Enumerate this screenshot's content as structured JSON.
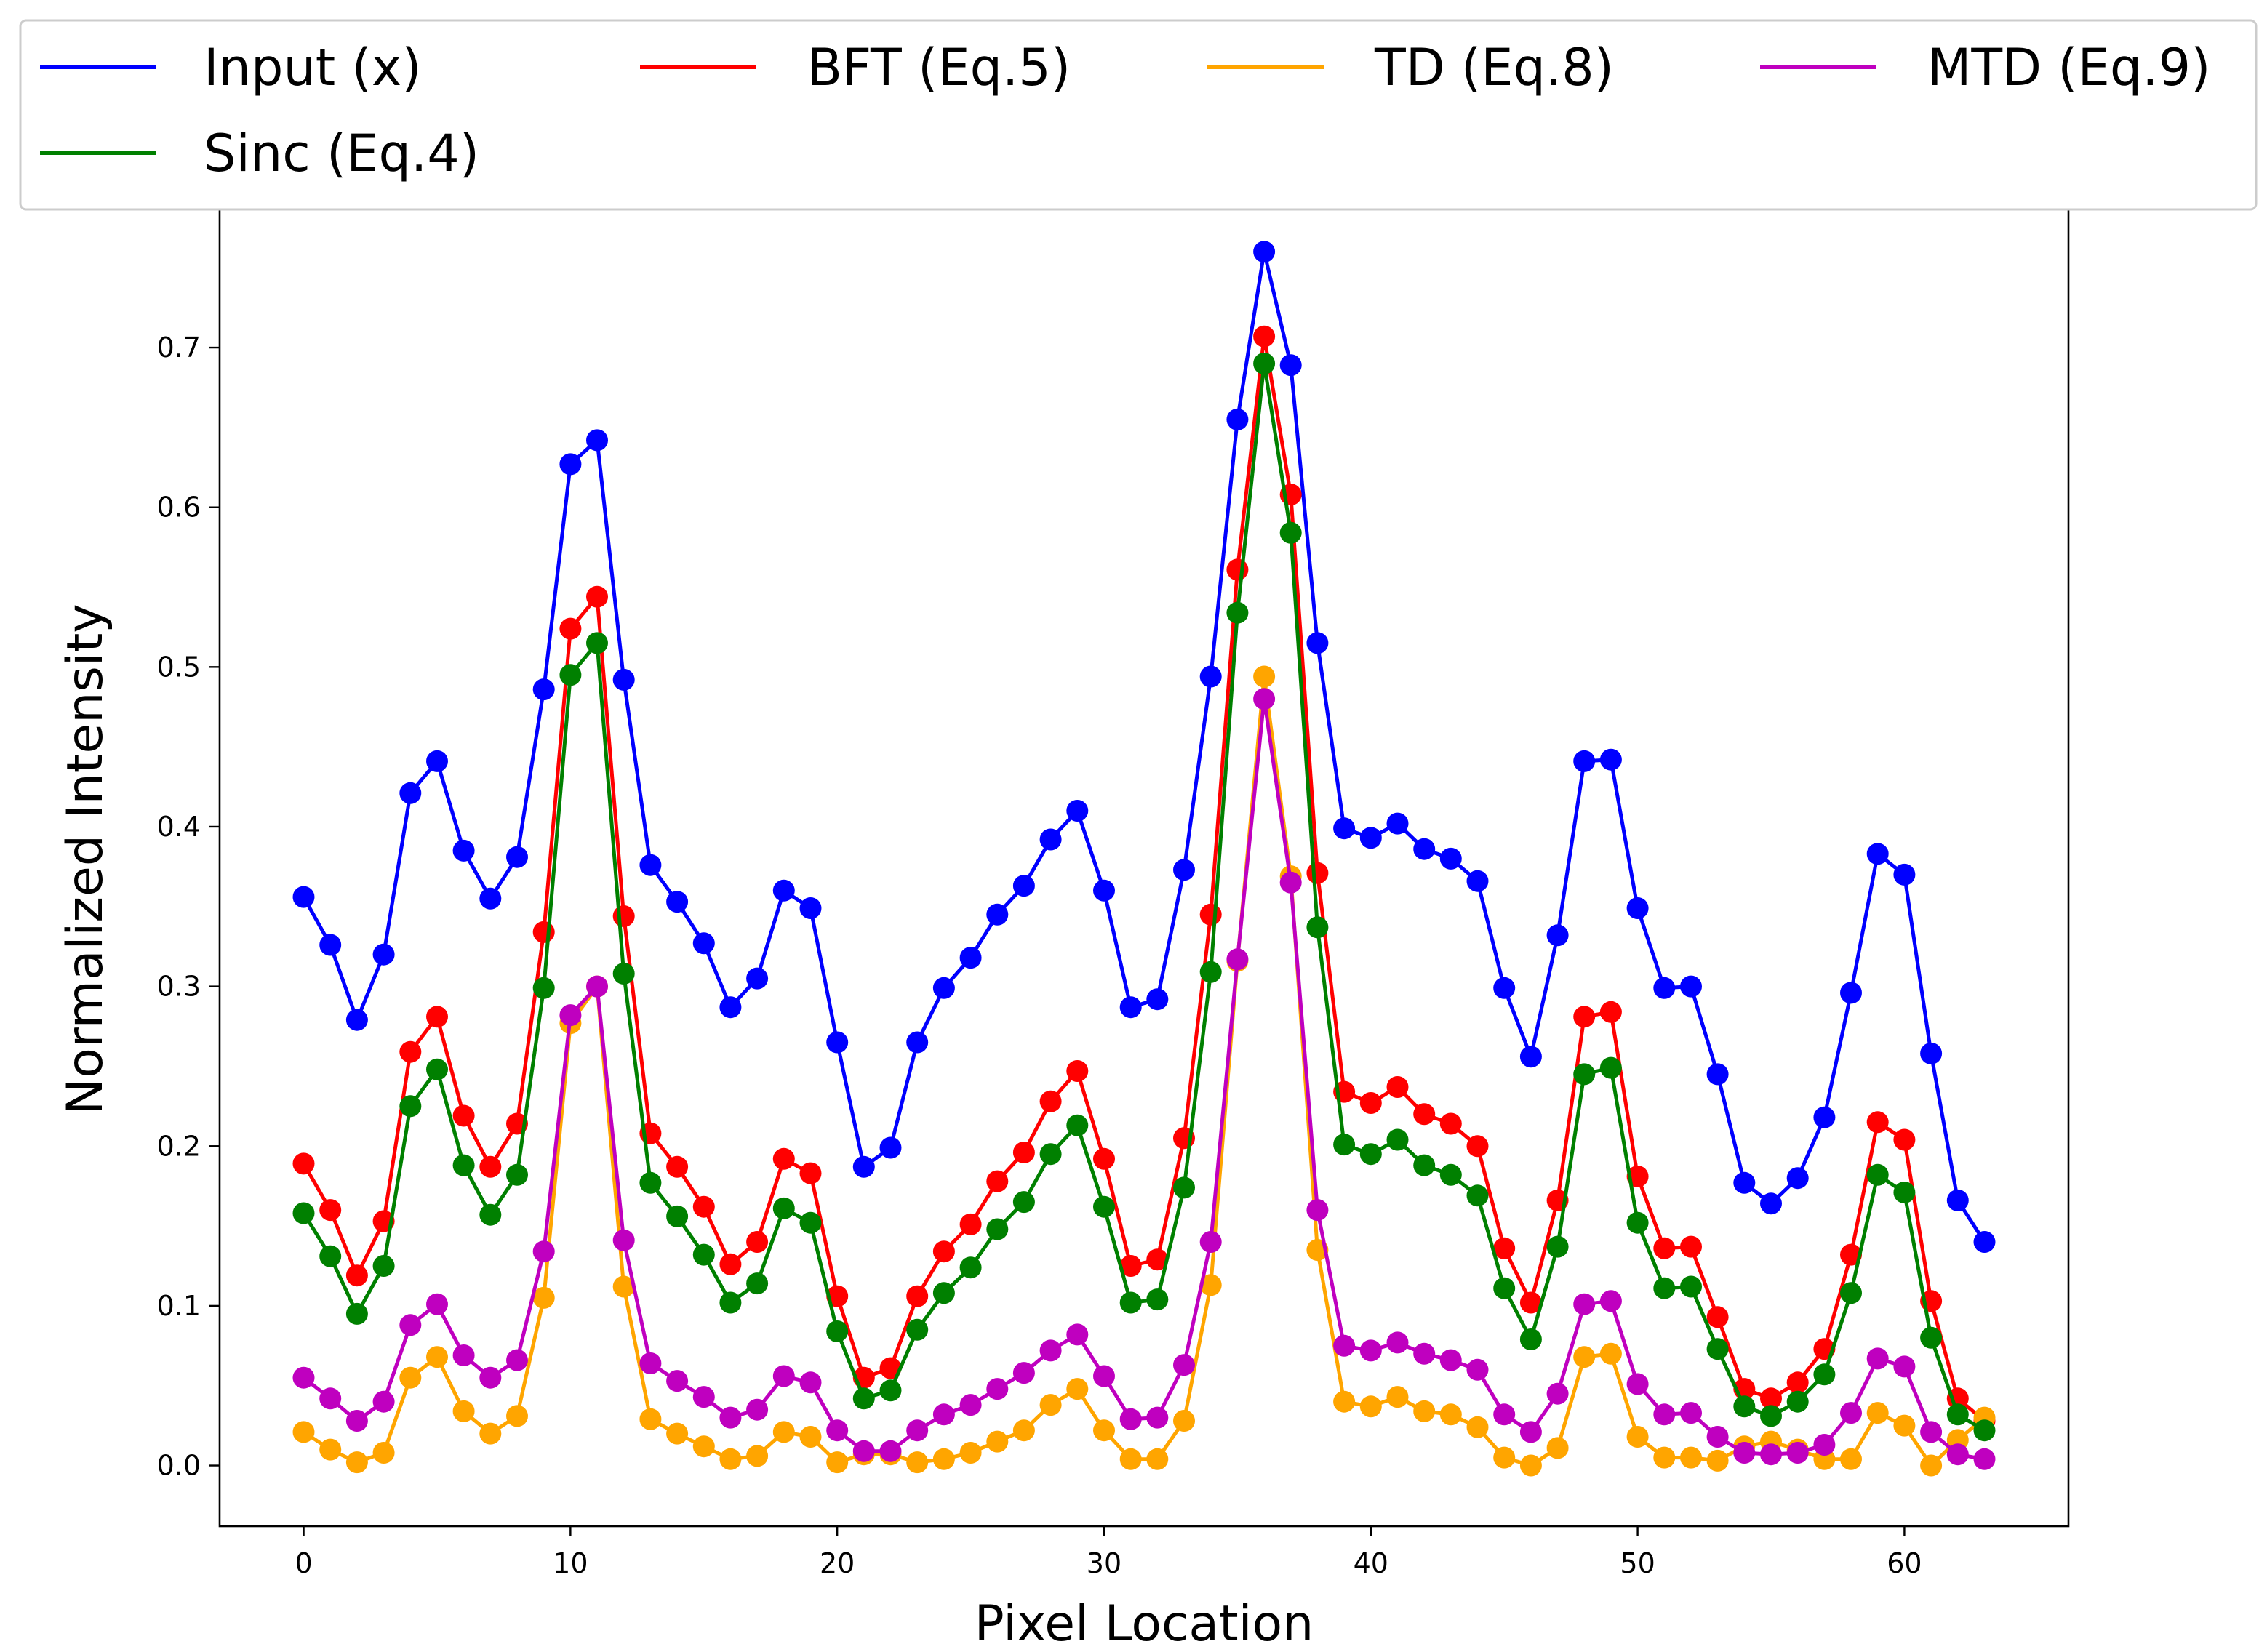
{
  "chart_data": {
    "type": "line",
    "xlabel": "Pixel Location",
    "ylabel": "Normalized Intensity",
    "xlim": [
      -3.15,
      66.15
    ],
    "ylim": [
      -0.038,
      0.797
    ],
    "xticks": [
      0,
      10,
      20,
      30,
      40,
      50,
      60
    ],
    "yticks": [
      0.0,
      0.1,
      0.2,
      0.3,
      0.4,
      0.5,
      0.6,
      0.7
    ],
    "ytick_labels": [
      "0.0",
      "0.1",
      "0.2",
      "0.3",
      "0.4",
      "0.5",
      "0.6",
      "0.7"
    ],
    "legend_position": "top (above plot, 4 columns)",
    "x": [
      0,
      1,
      2,
      3,
      4,
      5,
      6,
      7,
      8,
      9,
      10,
      11,
      12,
      13,
      14,
      15,
      16,
      17,
      18,
      19,
      20,
      21,
      22,
      23,
      24,
      25,
      26,
      27,
      28,
      29,
      30,
      31,
      32,
      33,
      34,
      35,
      36,
      37,
      38,
      39,
      40,
      41,
      42,
      43,
      44,
      45,
      46,
      47,
      48,
      49,
      50,
      51,
      52,
      53,
      54,
      55,
      56,
      57,
      58,
      59,
      60,
      61,
      62,
      63
    ],
    "series": [
      {
        "name": "Input (x)",
        "color": "#0000ff",
        "values": [
          0.356,
          0.326,
          0.279,
          0.32,
          0.421,
          0.441,
          0.385,
          0.355,
          0.381,
          0.486,
          0.627,
          0.642,
          0.492,
          0.376,
          0.353,
          0.327,
          0.287,
          0.305,
          0.36,
          0.349,
          0.265,
          0.187,
          0.199,
          0.265,
          0.299,
          0.318,
          0.345,
          0.363,
          0.392,
          0.41,
          0.36,
          0.287,
          0.292,
          0.373,
          0.494,
          0.655,
          0.76,
          0.689,
          0.515,
          0.399,
          0.393,
          0.402,
          0.386,
          0.38,
          0.366,
          0.299,
          0.256,
          0.332,
          0.441,
          0.442,
          0.349,
          0.299,
          0.3,
          0.245,
          0.177,
          0.164,
          0.18,
          0.218,
          0.296,
          0.383,
          0.37,
          0.258,
          0.166,
          0.14
        ]
      },
      {
        "name": "BFT (Eq.5)",
        "color": "#ff0000",
        "values": [
          0.189,
          0.16,
          0.119,
          0.153,
          0.259,
          0.281,
          0.219,
          0.187,
          0.214,
          0.334,
          0.524,
          0.544,
          0.344,
          0.208,
          0.187,
          0.162,
          0.126,
          0.14,
          0.192,
          0.183,
          0.106,
          0.055,
          0.061,
          0.106,
          0.134,
          0.151,
          0.178,
          0.196,
          0.228,
          0.247,
          0.192,
          0.125,
          0.129,
          0.205,
          0.345,
          0.561,
          0.707,
          0.608,
          0.371,
          0.234,
          0.227,
          0.237,
          0.22,
          0.214,
          0.2,
          0.136,
          0.102,
          0.166,
          0.281,
          0.284,
          0.181,
          0.136,
          0.137,
          0.093,
          0.048,
          0.042,
          0.052,
          0.073,
          0.132,
          0.215,
          0.204,
          0.103,
          0.042,
          0.028
        ]
      },
      {
        "name": "TD (Eq.8)",
        "color": "#ffa500",
        "values": [
          0.021,
          0.01,
          0.002,
          0.008,
          0.055,
          0.068,
          0.034,
          0.02,
          0.031,
          0.105,
          0.277,
          0.3,
          0.112,
          0.029,
          0.02,
          0.012,
          0.004,
          0.006,
          0.021,
          0.018,
          0.002,
          0.007,
          0.007,
          0.002,
          0.004,
          0.008,
          0.015,
          0.022,
          0.038,
          0.048,
          0.022,
          0.004,
          0.004,
          0.028,
          0.113,
          0.316,
          0.494,
          0.369,
          0.135,
          0.04,
          0.037,
          0.043,
          0.034,
          0.032,
          0.024,
          0.005,
          0.0,
          0.011,
          0.068,
          0.07,
          0.018,
          0.005,
          0.005,
          0.003,
          0.012,
          0.015,
          0.01,
          0.004,
          0.004,
          0.033,
          0.025,
          0.0,
          0.016,
          0.03
        ]
      },
      {
        "name": "MTD (Eq.9)",
        "color": "#bf00bf",
        "values": [
          0.055,
          0.042,
          0.028,
          0.04,
          0.088,
          0.101,
          0.069,
          0.055,
          0.066,
          0.134,
          0.282,
          0.3,
          0.141,
          0.064,
          0.053,
          0.043,
          0.03,
          0.035,
          0.056,
          0.052,
          0.022,
          0.009,
          0.009,
          0.022,
          0.032,
          0.038,
          0.048,
          0.058,
          0.072,
          0.082,
          0.056,
          0.029,
          0.03,
          0.063,
          0.14,
          0.317,
          0.48,
          0.365,
          0.16,
          0.075,
          0.072,
          0.077,
          0.07,
          0.066,
          0.06,
          0.032,
          0.021,
          0.045,
          0.101,
          0.103,
          0.051,
          0.032,
          0.033,
          0.018,
          0.008,
          0.007,
          0.008,
          0.013,
          0.033,
          0.067,
          0.062,
          0.021,
          0.007,
          0.004
        ]
      },
      {
        "name": "Sinc (Eq.4)",
        "color": "#008000",
        "values": [
          0.158,
          0.131,
          0.095,
          0.125,
          0.225,
          0.248,
          0.188,
          0.157,
          0.182,
          0.299,
          0.495,
          0.515,
          0.308,
          0.177,
          0.156,
          0.132,
          0.102,
          0.114,
          0.161,
          0.152,
          0.084,
          0.042,
          0.047,
          0.085,
          0.108,
          0.124,
          0.148,
          0.165,
          0.195,
          0.213,
          0.162,
          0.102,
          0.104,
          0.174,
          0.309,
          0.534,
          0.69,
          0.584,
          0.337,
          0.201,
          0.195,
          0.204,
          0.188,
          0.182,
          0.169,
          0.111,
          0.079,
          0.137,
          0.245,
          0.249,
          0.152,
          0.111,
          0.112,
          0.073,
          0.037,
          0.031,
          0.04,
          0.057,
          0.108,
          0.182,
          0.171,
          0.08,
          0.032,
          0.022
        ]
      }
    ]
  }
}
